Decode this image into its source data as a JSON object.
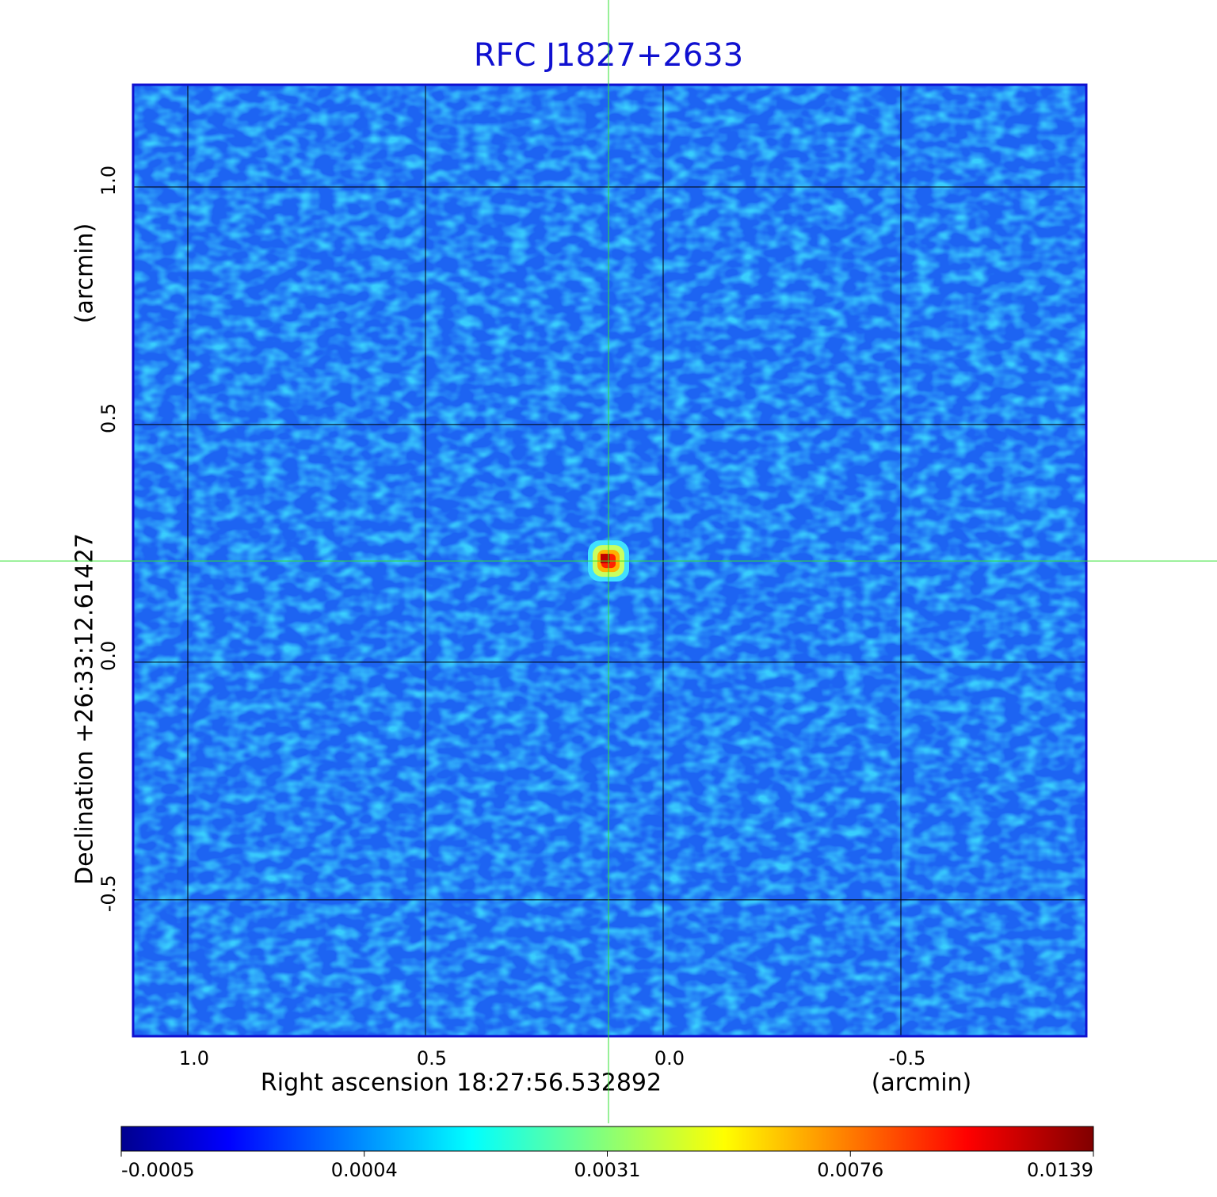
{
  "chart_data": {
    "type": "image",
    "title": "RFC J1827+2633",
    "x_label": "Right ascension  18:27:56.532892",
    "x_unit": "(arcmin)",
    "y_label": "Declination  +26:33:12.61427",
    "y_unit": "(arcmin)",
    "xlim": [
      1.115,
      -0.89
    ],
    "ylim": [
      -0.787,
      1.215
    ],
    "xticks": [
      {
        "value": 1,
        "label": "1.0"
      },
      0.5,
      {
        "value": 0,
        "label": "0.0"
      },
      -0.5
    ],
    "yticks": [
      -0.5,
      {
        "value": 0,
        "label": "0.0"
      },
      0.5,
      {
        "value": 1,
        "label": "1.0"
      }
    ],
    "grid": true,
    "source": {
      "x": 0.115,
      "y": 0.213
    },
    "colorbar_ticks": [
      -0.0005,
      0.0004,
      0.0031,
      0.0076,
      0.0139
    ]
  }
}
